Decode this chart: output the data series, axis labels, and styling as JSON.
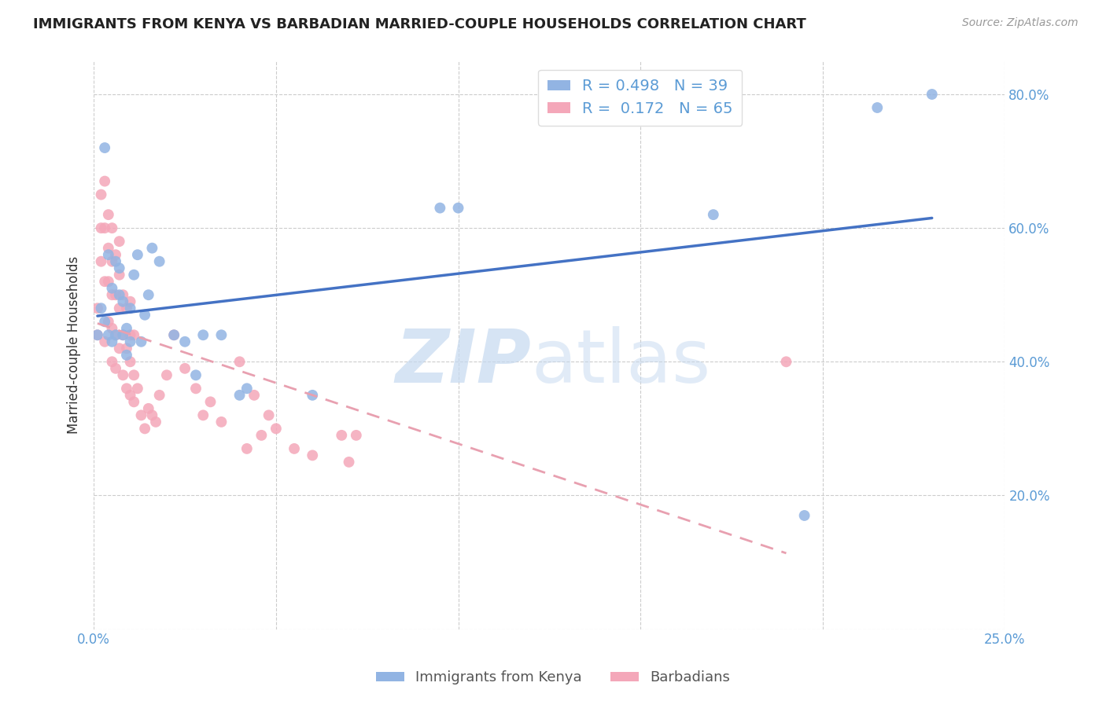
{
  "title": "IMMIGRANTS FROM KENYA VS BARBADIAN MARRIED-COUPLE HOUSEHOLDS CORRELATION CHART",
  "source": "Source: ZipAtlas.com",
  "ylabel_label": "Married-couple Households",
  "xlim": [
    0.0,
    0.25
  ],
  "ylim": [
    0.0,
    0.85
  ],
  "x_tick_positions": [
    0.0,
    0.05,
    0.1,
    0.15,
    0.2,
    0.25
  ],
  "x_tick_labels": [
    "0.0%",
    "",
    "",
    "",
    "",
    "25.0%"
  ],
  "y_tick_positions": [
    0.0,
    0.2,
    0.4,
    0.6,
    0.8
  ],
  "y_tick_labels_right": [
    "",
    "20.0%",
    "40.0%",
    "60.0%",
    "80.0%"
  ],
  "kenya_R": 0.498,
  "kenya_N": 39,
  "barbados_R": 0.172,
  "barbados_N": 65,
  "kenya_color": "#92b4e3",
  "barbados_color": "#f4a7b9",
  "kenya_line_color": "#4472c4",
  "barbados_line_color": "#e8a0b0",
  "kenya_x": [
    0.001,
    0.002,
    0.003,
    0.003,
    0.004,
    0.004,
    0.005,
    0.005,
    0.006,
    0.006,
    0.007,
    0.007,
    0.008,
    0.008,
    0.009,
    0.009,
    0.01,
    0.01,
    0.011,
    0.012,
    0.013,
    0.014,
    0.015,
    0.016,
    0.018,
    0.022,
    0.025,
    0.028,
    0.03,
    0.035,
    0.04,
    0.042,
    0.06,
    0.095,
    0.1,
    0.17,
    0.195,
    0.215,
    0.23
  ],
  "kenya_y": [
    0.44,
    0.48,
    0.46,
    0.72,
    0.44,
    0.56,
    0.43,
    0.51,
    0.55,
    0.44,
    0.5,
    0.54,
    0.44,
    0.49,
    0.45,
    0.41,
    0.43,
    0.48,
    0.53,
    0.56,
    0.43,
    0.47,
    0.5,
    0.57,
    0.55,
    0.44,
    0.43,
    0.38,
    0.44,
    0.44,
    0.35,
    0.36,
    0.35,
    0.63,
    0.63,
    0.62,
    0.17,
    0.78,
    0.8
  ],
  "barbados_x": [
    0.001,
    0.001,
    0.002,
    0.002,
    0.002,
    0.003,
    0.003,
    0.003,
    0.003,
    0.004,
    0.004,
    0.004,
    0.004,
    0.005,
    0.005,
    0.005,
    0.005,
    0.005,
    0.006,
    0.006,
    0.006,
    0.006,
    0.007,
    0.007,
    0.007,
    0.007,
    0.008,
    0.008,
    0.008,
    0.009,
    0.009,
    0.009,
    0.01,
    0.01,
    0.01,
    0.01,
    0.011,
    0.011,
    0.011,
    0.012,
    0.013,
    0.014,
    0.015,
    0.016,
    0.017,
    0.018,
    0.02,
    0.022,
    0.025,
    0.028,
    0.03,
    0.032,
    0.035,
    0.04,
    0.042,
    0.044,
    0.046,
    0.048,
    0.05,
    0.055,
    0.06,
    0.068,
    0.07,
    0.072,
    0.19
  ],
  "barbados_y": [
    0.44,
    0.48,
    0.55,
    0.6,
    0.65,
    0.43,
    0.52,
    0.6,
    0.67,
    0.46,
    0.52,
    0.57,
    0.62,
    0.4,
    0.45,
    0.5,
    0.55,
    0.6,
    0.39,
    0.44,
    0.5,
    0.56,
    0.42,
    0.48,
    0.53,
    0.58,
    0.38,
    0.44,
    0.5,
    0.36,
    0.42,
    0.48,
    0.35,
    0.4,
    0.44,
    0.49,
    0.34,
    0.38,
    0.44,
    0.36,
    0.32,
    0.3,
    0.33,
    0.32,
    0.31,
    0.35,
    0.38,
    0.44,
    0.39,
    0.36,
    0.32,
    0.34,
    0.31,
    0.4,
    0.27,
    0.35,
    0.29,
    0.32,
    0.3,
    0.27,
    0.26,
    0.29,
    0.25,
    0.29,
    0.4
  ]
}
